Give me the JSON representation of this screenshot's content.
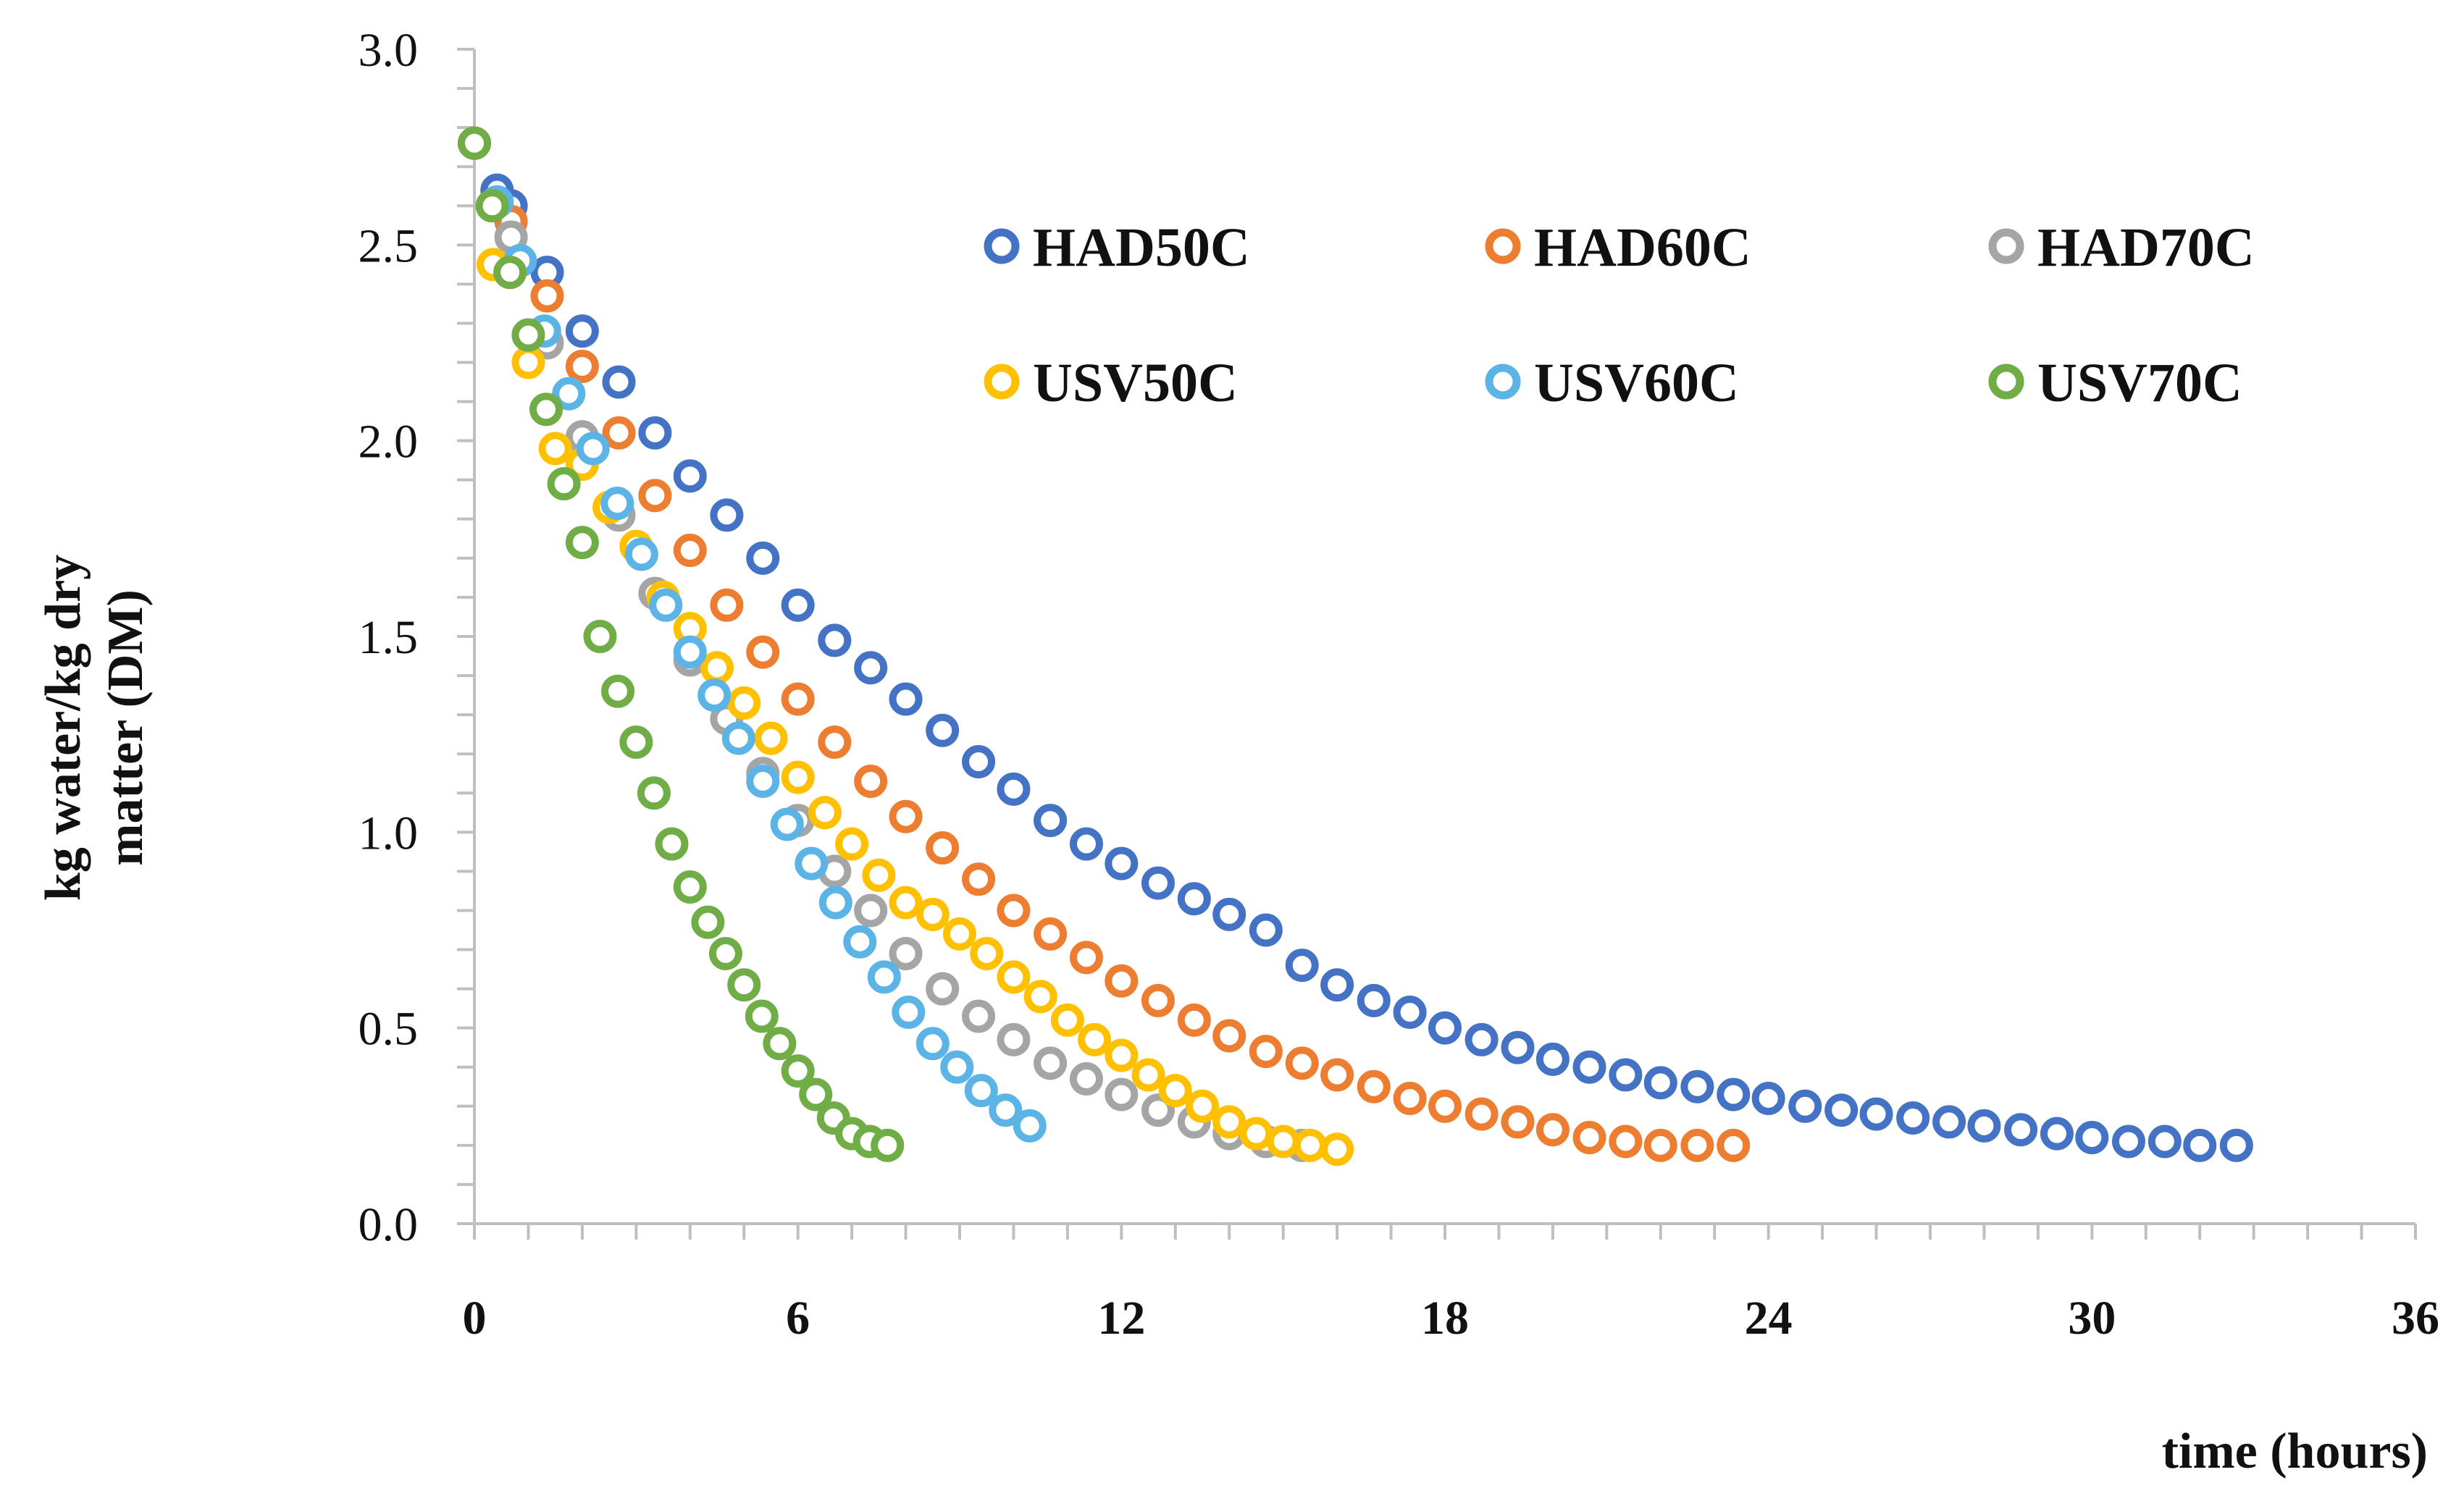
{
  "chart_data": {
    "type": "scatter",
    "title": "",
    "xlabel": "time (hours)",
    "ylabel_lines": [
      "kg water/kg dry",
      "matter (DM)"
    ],
    "xlim": [
      0,
      36
    ],
    "ylim": [
      0,
      3
    ],
    "xticks": [
      0,
      6,
      12,
      18,
      24,
      30,
      36
    ],
    "yticks": [
      0.0,
      0.5,
      1.0,
      1.5,
      2.0,
      2.5,
      3.0
    ],
    "ytick_labels": [
      "0.0",
      "0.5",
      "1.0",
      "1.5",
      "2.0",
      "2.5",
      "3.0"
    ],
    "x_minor_step": 1,
    "y_minor_step": 0.1,
    "legend": {
      "position": "top-right",
      "columns": 3
    },
    "series": [
      {
        "name": "HAD50C",
        "color": "#4472C4",
        "x": [
          0,
          0.42,
          0.68,
          1.35,
          2.0,
          2.68,
          3.35,
          4.0,
          4.68,
          5.35,
          6.0,
          6.68,
          7.35,
          8.0,
          8.68,
          9.35,
          10.0,
          10.68,
          11.35,
          12.0,
          12.68,
          13.35,
          14.0,
          14.68,
          15.35,
          16.0,
          16.68,
          17.35,
          18.0,
          18.68,
          19.35,
          20.0,
          20.68,
          21.35,
          22.0,
          22.68,
          23.35,
          24.0,
          24.68,
          25.35,
          26.0,
          26.68,
          27.35,
          28.0,
          28.68,
          29.35,
          30.0,
          30.68,
          31.35,
          32.0,
          32.68
        ],
        "y": [
          2.76,
          2.64,
          2.6,
          2.43,
          2.28,
          2.15,
          2.02,
          1.91,
          1.81,
          1.7,
          1.58,
          1.49,
          1.42,
          1.34,
          1.26,
          1.18,
          1.11,
          1.03,
          0.97,
          0.92,
          0.87,
          0.83,
          0.79,
          0.75,
          0.66,
          0.61,
          0.57,
          0.54,
          0.5,
          0.47,
          0.45,
          0.42,
          0.4,
          0.38,
          0.36,
          0.35,
          0.33,
          0.32,
          0.3,
          0.29,
          0.28,
          0.27,
          0.26,
          0.25,
          0.24,
          0.23,
          0.22,
          0.21,
          0.21,
          0.2,
          0.2
        ]
      },
      {
        "name": "HAD60C",
        "color": "#ED7D31",
        "x": [
          0,
          0.68,
          1.35,
          2.0,
          2.68,
          3.35,
          4.0,
          4.68,
          5.35,
          6.0,
          6.68,
          7.35,
          8.0,
          8.68,
          9.35,
          10.0,
          10.68,
          11.35,
          12.0,
          12.68,
          13.35,
          14.0,
          14.68,
          15.35,
          16.0,
          16.68,
          17.35,
          18.0,
          18.68,
          19.35,
          20.0,
          20.68,
          21.35,
          22.0,
          22.68,
          23.35
        ],
        "y": [
          2.76,
          2.56,
          2.37,
          2.19,
          2.02,
          1.86,
          1.72,
          1.58,
          1.46,
          1.34,
          1.23,
          1.13,
          1.04,
          0.96,
          0.88,
          0.8,
          0.74,
          0.68,
          0.62,
          0.57,
          0.52,
          0.48,
          0.44,
          0.41,
          0.38,
          0.35,
          0.32,
          0.3,
          0.28,
          0.26,
          0.24,
          0.22,
          0.21,
          0.2,
          0.2,
          0.2
        ]
      },
      {
        "name": "HAD70C",
        "color": "#A5A5A5",
        "x": [
          0,
          0.68,
          1.35,
          2.0,
          2.68,
          3.35,
          4.0,
          4.68,
          5.35,
          6.0,
          6.68,
          7.35,
          8.0,
          8.68,
          9.35,
          10.0,
          10.68,
          11.35,
          12.0,
          12.68,
          13.35,
          14.0,
          14.68,
          15.35
        ],
        "y": [
          2.76,
          2.52,
          2.25,
          2.01,
          1.81,
          1.61,
          1.44,
          1.29,
          1.15,
          1.03,
          0.9,
          0.8,
          0.69,
          0.6,
          0.53,
          0.47,
          0.41,
          0.37,
          0.33,
          0.29,
          0.26,
          0.23,
          0.21,
          0.2
        ]
      },
      {
        "name": "USV50C",
        "color": "#FFC000",
        "x": [
          0,
          0.35,
          1.0,
          1.5,
          2.0,
          2.5,
          3.0,
          3.5,
          4.0,
          4.5,
          5.0,
          5.5,
          6.0,
          6.5,
          7.0,
          7.5,
          8.0,
          8.5,
          9.0,
          9.5,
          10.0,
          10.5,
          11.0,
          11.5,
          12.0,
          12.5,
          13.0,
          13.5,
          14.0,
          14.5,
          15.0,
          15.5,
          16.0
        ],
        "y": [
          2.76,
          2.45,
          2.2,
          1.98,
          1.94,
          1.83,
          1.73,
          1.6,
          1.52,
          1.42,
          1.33,
          1.24,
          1.14,
          1.05,
          0.97,
          0.89,
          0.82,
          0.79,
          0.74,
          0.69,
          0.63,
          0.58,
          0.52,
          0.47,
          0.43,
          0.38,
          0.34,
          0.3,
          0.26,
          0.23,
          0.21,
          0.2,
          0.19
        ]
      },
      {
        "name": "USV60C",
        "color": "#5BB4E5",
        "x": [
          0,
          0.42,
          0.85,
          1.3,
          1.75,
          2.2,
          2.65,
          3.1,
          3.55,
          4.0,
          4.45,
          4.9,
          5.35,
          5.8,
          6.25,
          6.7,
          7.15,
          7.6,
          8.05,
          8.5,
          8.95,
          9.4,
          9.85,
          10.3
        ],
        "y": [
          2.76,
          2.61,
          2.46,
          2.28,
          2.12,
          1.98,
          1.84,
          1.71,
          1.58,
          1.46,
          1.35,
          1.24,
          1.13,
          1.02,
          0.92,
          0.82,
          0.72,
          0.63,
          0.54,
          0.46,
          0.4,
          0.34,
          0.29,
          0.25
        ]
      },
      {
        "name": "USV70C",
        "color": "#70AD47",
        "x": [
          0,
          0.33,
          0.66,
          1.0,
          1.33,
          1.66,
          2.0,
          2.33,
          2.66,
          3.0,
          3.33,
          3.66,
          4.0,
          4.33,
          4.66,
          5.0,
          5.33,
          5.66,
          6.0,
          6.33,
          6.66,
          7.0,
          7.33,
          7.66
        ],
        "y": [
          2.76,
          2.6,
          2.43,
          2.27,
          2.08,
          1.89,
          1.74,
          1.5,
          1.36,
          1.23,
          1.1,
          0.97,
          0.86,
          0.77,
          0.69,
          0.61,
          0.53,
          0.46,
          0.39,
          0.33,
          0.27,
          0.23,
          0.21,
          0.2
        ]
      }
    ]
  }
}
